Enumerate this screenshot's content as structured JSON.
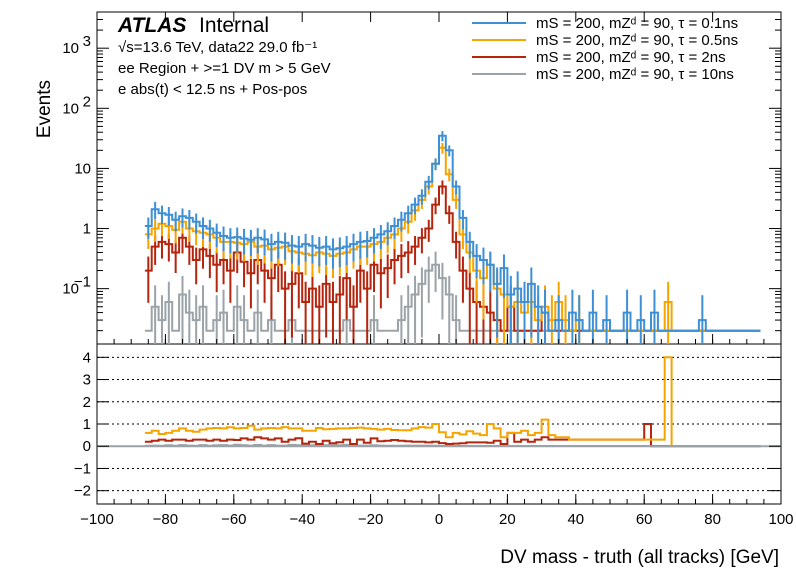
{
  "chart_data": {
    "type": "line",
    "title": "ATLAS Internal",
    "brand": "ATLAS",
    "brand_suffix": "Internal",
    "info_lines": [
      "√s=13.6 TeV, data22 29.0 fb⁻¹",
      "ee Region + >=1 DV m > 5 GeV",
      "e abs(t) < 12.5 ns + Pos-pos"
    ],
    "xlabel": "DV mass - truth (all tracks) [GeV]",
    "ylabel": "Events",
    "xlim": [
      -100,
      100
    ],
    "x_ticks": [
      "−100",
      "−80",
      "−60",
      "−40",
      "−20",
      "0",
      "20",
      "40",
      "60",
      "80",
      "100"
    ],
    "x_tick_values": [
      -100,
      -80,
      -60,
      -40,
      -20,
      0,
      20,
      40,
      60,
      80,
      100
    ],
    "y_scale": "log",
    "ylim": [
      0.012,
      4000
    ],
    "y_ticks": [
      {
        "value": 1000,
        "base": "10",
        "exp": "3"
      },
      {
        "value": 100,
        "base": "10",
        "exp": "2"
      },
      {
        "value": 10,
        "base": "10",
        "exp": ""
      },
      {
        "value": 1,
        "base": "1",
        "exp": ""
      },
      {
        "value": 0.1,
        "base": "10",
        "exp": "−1"
      }
    ],
    "ratio_ylim": [
      -2.6,
      4.6
    ],
    "ratio_ticks": [
      "4",
      "3",
      "2",
      "1",
      "0",
      "−1",
      "−2"
    ],
    "ratio_tick_values": [
      4,
      3,
      2,
      1,
      0,
      -1,
      -2
    ],
    "bin_edges_start": -86,
    "bin_width": 2,
    "series": [
      {
        "name": "mS = 200, mZ_d = 90, τ = 0.1ns",
        "legend_label": "mS = 200, mZᵈ = 90, τ = 0.1ns",
        "color": "#3d8fd6",
        "values": [
          1.1,
          2.1,
          1.8,
          1.7,
          1.4,
          1.6,
          1.5,
          1.3,
          1.1,
          1.0,
          0.85,
          0.75,
          0.7,
          0.72,
          0.68,
          0.65,
          0.7,
          0.66,
          0.55,
          0.6,
          0.58,
          0.52,
          0.5,
          0.55,
          0.52,
          0.48,
          0.5,
          0.45,
          0.47,
          0.5,
          0.55,
          0.6,
          0.62,
          0.7,
          0.8,
          0.9,
          1.1,
          1.4,
          1.8,
          2.5,
          3.5,
          6.0,
          12.0,
          35.0,
          20.0,
          5.0,
          1.5,
          0.6,
          0.35,
          0.3,
          0.25,
          0.12,
          0.22,
          0.08,
          0.1,
          0.06,
          0.12,
          0.05,
          0.04,
          0.02,
          0.03,
          0.02,
          0.04,
          0.03,
          0.02,
          0.04,
          0.02,
          0.03,
          0.02,
          0.02,
          0.04,
          0.02,
          0.03,
          0.02,
          0.04,
          0.02,
          0.02,
          0.02,
          0.02,
          0.02,
          0.02,
          0.03,
          0.02,
          0.02,
          0.02,
          0.02,
          0.02,
          0.02,
          0.02,
          0.02
        ]
      },
      {
        "name": "mS = 200, mZ_d = 90, τ = 0.5ns",
        "legend_label": "mS = 200, mZᵈ = 90, τ = 0.5ns",
        "color": "#f5a400",
        "values": [
          0.8,
          1.0,
          1.2,
          1.1,
          0.95,
          1.3,
          1.0,
          0.9,
          0.85,
          0.8,
          0.7,
          0.6,
          0.6,
          0.58,
          0.55,
          0.6,
          0.5,
          0.52,
          0.45,
          0.48,
          0.5,
          0.42,
          0.4,
          0.38,
          0.36,
          0.4,
          0.38,
          0.35,
          0.38,
          0.4,
          0.45,
          0.5,
          0.5,
          0.55,
          0.6,
          0.7,
          0.8,
          1.0,
          1.3,
          2.0,
          3.0,
          5.0,
          12.0,
          22.0,
          8.0,
          3.0,
          0.8,
          0.4,
          0.2,
          0.15,
          0.25,
          0.1,
          0.08,
          0.05,
          0.06,
          0.04,
          0.06,
          0.03,
          0.05,
          0.03,
          0.06,
          0.03,
          0.02,
          0.03,
          0.02,
          0.02,
          0.02,
          0.02,
          0.02,
          0.02,
          0.02,
          0.02,
          0.02,
          0.02,
          0.02,
          0.02,
          0.06,
          0.02,
          0.02,
          0.02,
          0.02,
          0.02,
          0.02,
          0.02,
          0.02,
          0.02,
          0.02,
          0.02,
          0.02,
          0.02
        ]
      },
      {
        "name": "mS = 200, mZ_d = 90, τ = 2ns",
        "legend_label": "mS = 200, mZᵈ = 90, τ = 2ns",
        "color": "#b5240c",
        "values": [
          0.2,
          0.5,
          0.6,
          0.55,
          0.4,
          0.7,
          0.5,
          0.3,
          0.45,
          0.35,
          0.25,
          0.3,
          0.2,
          0.4,
          0.28,
          0.18,
          0.3,
          0.2,
          0.15,
          0.25,
          0.1,
          0.12,
          0.18,
          0.06,
          0.1,
          0.05,
          0.12,
          0.06,
          0.08,
          0.15,
          0.05,
          0.2,
          0.1,
          0.25,
          0.18,
          0.22,
          0.3,
          0.35,
          0.4,
          0.5,
          0.7,
          1.0,
          2.5,
          5.0,
          1.8,
          0.6,
          0.2,
          0.1,
          0.06,
          0.05,
          0.04,
          0.03,
          0.02,
          0.05,
          0.02,
          0.02,
          0.02,
          0.02,
          0.04,
          0.02,
          0.02,
          0.02,
          0.02,
          0.02,
          0.02,
          0.02,
          0.02,
          0.02,
          0.02,
          0.02,
          0.02,
          0.02,
          0.02,
          0.02,
          0.02,
          0.02,
          0.02,
          0.02,
          0.02,
          0.02,
          0.02,
          0.02,
          0.02,
          0.02,
          0.02,
          0.02,
          0.02,
          0.02,
          0.02,
          0.02
        ]
      },
      {
        "name": "mS = 200, mZ_d = 90, τ = 10ns",
        "legend_label": "mS = 200, mZᵈ = 90, τ = 10ns",
        "color": "#9ba3a8",
        "values": [
          0.02,
          0.05,
          0.03,
          0.06,
          0.02,
          0.08,
          0.04,
          0.03,
          0.05,
          0.02,
          0.03,
          0.04,
          0.02,
          0.05,
          0.03,
          0.02,
          0.04,
          0.02,
          0.03,
          0.02,
          0.02,
          0.03,
          0.02,
          0.02,
          0.02,
          0.02,
          0.02,
          0.02,
          0.02,
          0.03,
          0.02,
          0.02,
          0.02,
          0.03,
          0.02,
          0.02,
          0.02,
          0.03,
          0.05,
          0.08,
          0.12,
          0.2,
          0.25,
          0.15,
          0.08,
          0.03,
          0.02,
          0.02,
          0.02,
          0.02,
          0.02,
          0.02,
          0.02,
          0.02,
          0.02,
          0.02,
          0.02,
          0.02,
          0.02,
          0.02,
          0.02,
          0.02,
          0.02,
          0.02,
          0.02,
          0.02,
          0.02,
          0.02,
          0.02,
          0.02,
          0.02,
          0.02,
          0.02,
          0.02,
          0.02,
          0.02,
          0.02,
          0.02,
          0.02,
          0.02,
          0.02,
          0.02,
          0.02,
          0.02,
          0.02,
          0.02,
          0.02,
          0.02,
          0.02,
          0.02
        ]
      }
    ],
    "ratio_series": [
      {
        "name": "τ = 0.5ns / τ = 0.1ns",
        "color": "#f5a400",
        "values": [
          0.6,
          0.7,
          0.55,
          0.6,
          0.7,
          0.8,
          0.7,
          0.65,
          0.75,
          0.8,
          0.82,
          0.8,
          0.85,
          0.8,
          0.82,
          0.92,
          0.75,
          0.8,
          0.82,
          0.8,
          0.86,
          0.8,
          0.8,
          0.7,
          0.7,
          0.82,
          0.76,
          0.78,
          0.8,
          0.8,
          0.82,
          0.84,
          0.8,
          0.78,
          0.75,
          0.78,
          0.73,
          0.72,
          0.72,
          0.8,
          0.86,
          0.84,
          1.0,
          0.63,
          0.4,
          0.6,
          0.53,
          0.67,
          0.57,
          0.5,
          1.0,
          0.8,
          0.4,
          0.6,
          0.6,
          0.7,
          0.5,
          0.6,
          1.2,
          0.5,
          0.4,
          0.4,
          0.3,
          0.3,
          0.3,
          0.3,
          0.3,
          0.3,
          0.3,
          0.3,
          0.3,
          0.3,
          0.3,
          0.3,
          0.3,
          0.3,
          4.0,
          0.0,
          0.0,
          0.0,
          0.0,
          0.0,
          0.0,
          0.0,
          0.0,
          0.0,
          0.0,
          0.0,
          0.0,
          0.0
        ]
      },
      {
        "name": "τ = 2ns / τ = 0.1ns",
        "color": "#b5240c",
        "values": [
          0.2,
          0.25,
          0.3,
          0.25,
          0.3,
          0.3,
          0.25,
          0.3,
          0.3,
          0.25,
          0.3,
          0.25,
          0.3,
          0.28,
          0.35,
          0.3,
          0.4,
          0.35,
          0.3,
          0.35,
          0.2,
          0.3,
          0.36,
          0.12,
          0.2,
          0.1,
          0.25,
          0.13,
          0.18,
          0.3,
          0.1,
          0.3,
          0.16,
          0.35,
          0.22,
          0.25,
          0.28,
          0.25,
          0.22,
          0.2,
          0.2,
          0.17,
          0.2,
          0.14,
          0.1,
          0.12,
          0.13,
          0.17,
          0.17,
          0.17,
          0.16,
          0.25,
          0.1,
          0.6,
          0.2,
          0.3,
          0.2,
          0.3,
          0.4,
          0.3,
          0.3,
          0.3,
          0.3,
          0.3,
          0.3,
          0.3,
          0.3,
          0.3,
          0.3,
          0.3,
          0.3,
          0.3,
          0.3,
          1.0,
          0.0,
          0.0,
          0.0,
          0.0,
          0.0,
          0.0,
          0.0,
          0.0,
          0.0,
          0.0,
          0.0,
          0.0,
          0.0,
          0.0,
          0.0,
          0.0
        ]
      },
      {
        "name": "τ = 10ns / τ = 0.1ns",
        "color": "#9ba3a8",
        "values": [
          0.02,
          0.03,
          0.02,
          0.04,
          0.02,
          0.05,
          0.03,
          0.02,
          0.05,
          0.02,
          0.04,
          0.05,
          0.03,
          0.07,
          0.04,
          0.03,
          0.06,
          0.03,
          0.05,
          0.03,
          0.03,
          0.06,
          0.04,
          0.04,
          0.04,
          0.04,
          0.04,
          0.04,
          0.04,
          0.06,
          0.04,
          0.03,
          0.03,
          0.04,
          0.03,
          0.02,
          0.02,
          0.02,
          0.03,
          0.03,
          0.03,
          0.03,
          0.02,
          0.01,
          0.01,
          0.01,
          0.01,
          0.01,
          0.01,
          0.01,
          0.01,
          0.01,
          0.01,
          0.01,
          0.01,
          0.01,
          0.01,
          0.01,
          0.01,
          0.01,
          0.01,
          0.01,
          0.01,
          0.01,
          0.01,
          0.01,
          0.01,
          0.01,
          0.01,
          0.01,
          0.01,
          0.01,
          0.01,
          0.01,
          0.01,
          0.01,
          0.01,
          0.01,
          0.01,
          0.01,
          0.01,
          0.01,
          0.01,
          0.01,
          0.01,
          0.01,
          0.01,
          0.01,
          0.01,
          0.01
        ]
      }
    ]
  }
}
